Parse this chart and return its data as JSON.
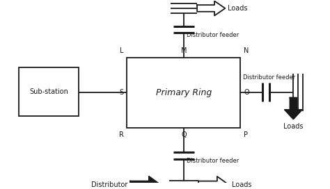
{
  "bg_color": "#ffffff",
  "line_color": "#1a1a1a",
  "figsize": [
    4.74,
    2.72
  ],
  "dpi": 100,
  "substation_label": "Sub-station",
  "primary_ring_label": "Primary Ring",
  "top_feeder_label": "Distributor feeder",
  "right_feeder_label": "Distributor feeder",
  "bottom_feeder_label": "Distributor feeder",
  "bottom_distributor_label": "Distributor",
  "loads_top": "Loads",
  "loads_right": "Loads",
  "loads_bottom": "Loads",
  "corner_L": "L",
  "corner_M": "M",
  "corner_N": "N",
  "corner_S": "S",
  "corner_O": "O",
  "corner_R": "R",
  "corner_Q": "Q",
  "corner_P": "P"
}
